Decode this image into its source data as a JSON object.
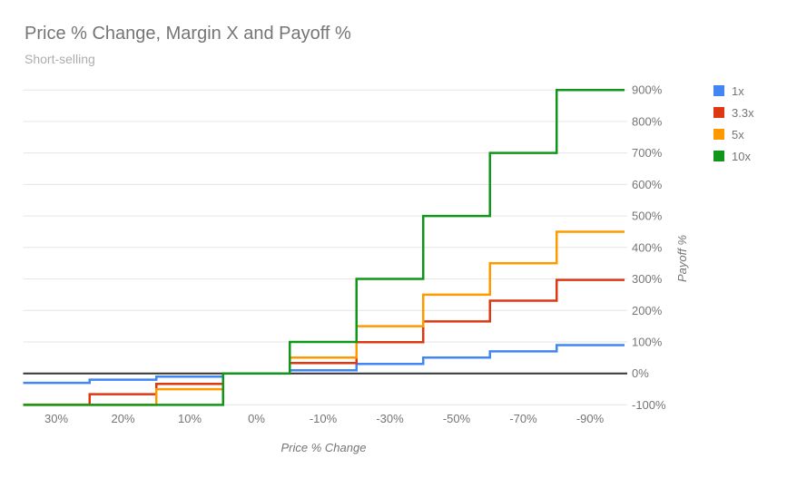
{
  "chart_data": {
    "type": "line",
    "step_interpolation": "middle",
    "title": "Price % Change, Margin X and Payoff %",
    "subtitle": "Short-selling",
    "xlabel": "Price % Change",
    "ylabel": "Payoff %",
    "categories": [
      "30%",
      "20%",
      "10%",
      "0%",
      "-10%",
      "-30%",
      "-50%",
      "-70%",
      "-90%"
    ],
    "series": [
      {
        "name": "1x",
        "color": "#4285f4",
        "values": [
          -30,
          -20,
          -10,
          0,
          10,
          30,
          50,
          70,
          90
        ]
      },
      {
        "name": "3.3x",
        "color": "#dc3912",
        "values": [
          -99,
          -66,
          -33,
          0,
          33,
          99,
          165,
          231,
          297
        ]
      },
      {
        "name": "5x",
        "color": "#ff9900",
        "values": [
          -100,
          -100,
          -50,
          0,
          50,
          150,
          250,
          350,
          450
        ]
      },
      {
        "name": "10x",
        "color": "#109618",
        "values": [
          -100,
          -100,
          -100,
          0,
          100,
          300,
          500,
          700,
          900
        ]
      }
    ],
    "ylim": [
      -100,
      900
    ],
    "y_ticks": [
      {
        "value": -100,
        "label": "-100%"
      },
      {
        "value": 0,
        "label": "0%"
      },
      {
        "value": 100,
        "label": "100%"
      },
      {
        "value": 200,
        "label": "200%"
      },
      {
        "value": 300,
        "label": "300%"
      },
      {
        "value": 400,
        "label": "400%"
      },
      {
        "value": 500,
        "label": "500%"
      },
      {
        "value": 600,
        "label": "600%"
      },
      {
        "value": 700,
        "label": "700%"
      },
      {
        "value": 800,
        "label": "800%"
      },
      {
        "value": 900,
        "label": "900%"
      }
    ],
    "grid": true,
    "grid_color": "#e6e6e6",
    "baseline": {
      "value": 0,
      "color": "#333333"
    },
    "legend_position": "right",
    "y_axis_side": "right"
  }
}
